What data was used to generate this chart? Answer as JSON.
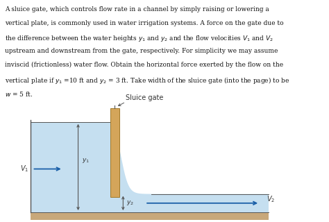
{
  "text_lines": [
    "A sluice gate, which controls flow rate in a channel by simply raising or lowering a",
    "vertical plate, is commonly used in water irrigation systems. A force on the gate due to",
    "the difference between the water heights $y_1$ and $y_2$ and the flow velocities $V_1$ and $V_2$",
    "upstream and downstream from the gate, respectively. For simplicity we may assume",
    "inviscid (frictionless) water flow. Obtain the horizontal force exerted by the flow on the",
    "vertical plate if $y_1$ =10 ft and $y_2$ = 3 ft. Take width of the sluice gate (into the page) to be",
    "$w$ = 5 ft."
  ],
  "diagram_title": "Sluice gate",
  "water_color": "#c5dff0",
  "gate_color": "#d4a55a",
  "gate_edge_color": "#a07828",
  "floor_color": "#c8a87a",
  "arrow_color": "#1a5fa8",
  "line_color": "#555555",
  "text_color": "#111111",
  "bg_color": "#ffffff",
  "font_size": 6.5
}
